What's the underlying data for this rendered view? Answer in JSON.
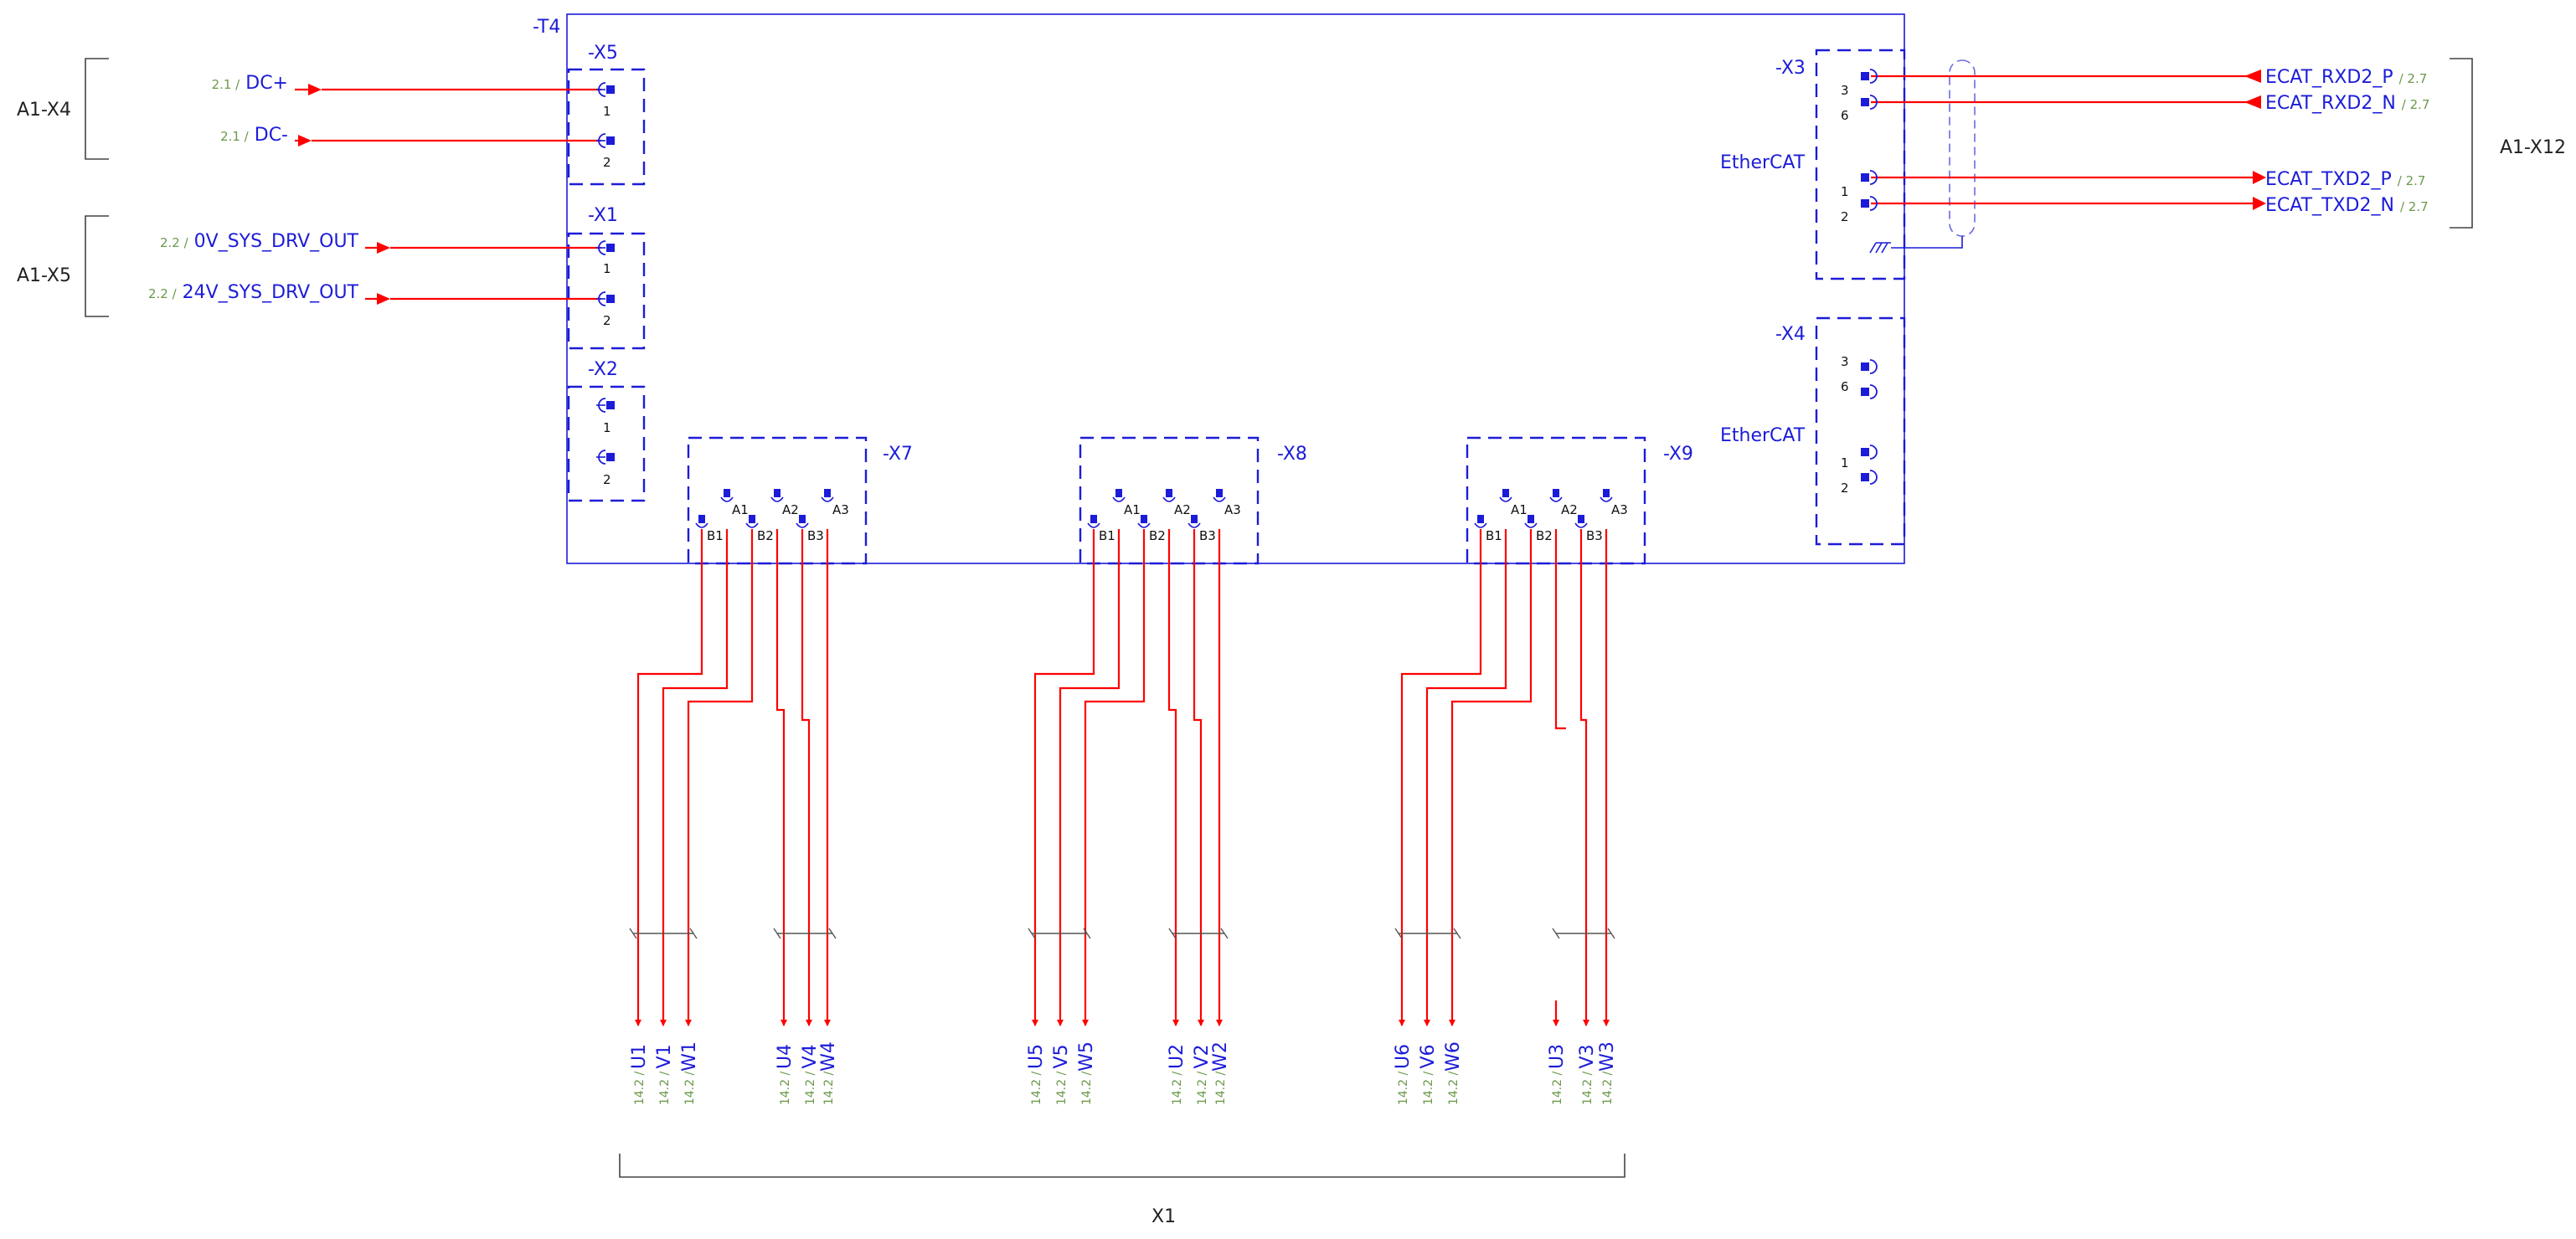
{
  "device": {
    "id": "-T4"
  },
  "colors": {
    "wire": "#ff0000",
    "device": "#1c1cd8",
    "crossref": "#6a9a4a",
    "bracket": "#444444"
  },
  "connectors": {
    "x5": {
      "label": "-X5",
      "pin1": "1",
      "pin2": "2"
    },
    "x1": {
      "label": "-X1",
      "pin1": "1",
      "pin2": "2"
    },
    "x2": {
      "label": "-X2",
      "pin1": "1",
      "pin2": "2"
    },
    "x3": {
      "label": "-X3",
      "proto": "EtherCAT",
      "pins": [
        "3",
        "6",
        "1",
        "2"
      ]
    },
    "x4": {
      "label": "-X4",
      "proto": "EtherCAT",
      "pins": [
        "3",
        "6",
        "1",
        "2"
      ]
    },
    "x7": {
      "label": "-X7",
      "pins": [
        "B1",
        "A1",
        "B2",
        "A2",
        "B3",
        "A3"
      ]
    },
    "x8": {
      "label": "-X8",
      "pins": [
        "B1",
        "A1",
        "B2",
        "A2",
        "B3",
        "A3"
      ]
    },
    "x9": {
      "label": "-X9",
      "pins": [
        "B1",
        "A1",
        "B2",
        "A2",
        "B3",
        "A3"
      ]
    }
  },
  "left_groups": {
    "g1": "A1-X4",
    "g2": "A1-X5"
  },
  "right_group": "A1-X12",
  "bottom_group": "X1",
  "left_signals": [
    {
      "ref": "2.1 /",
      "name": "DC+"
    },
    {
      "ref": "2.1 /",
      "name": "DC-"
    },
    {
      "ref": "2.2 /",
      "name": "0V_SYS_DRV_OUT"
    },
    {
      "ref": "2.2 /",
      "name": "24V_SYS_DRV_OUT"
    }
  ],
  "right_signals": [
    {
      "name": "ECAT_RXD2_P",
      "ref": "/ 2.7"
    },
    {
      "name": "ECAT_RXD2_N",
      "ref": "/ 2.7"
    },
    {
      "name": "ECAT_TXD2_P",
      "ref": "/ 2.7"
    },
    {
      "name": "ECAT_TXD2_N",
      "ref": "/ 2.7"
    }
  ],
  "outputs": [
    {
      "name": "U1",
      "ref": "14.2 /"
    },
    {
      "name": "V1",
      "ref": "14.2 /"
    },
    {
      "name": "W1",
      "ref": "14.2 /"
    },
    {
      "name": "U4",
      "ref": "14.2 /"
    },
    {
      "name": "V4",
      "ref": "14.2 /"
    },
    {
      "name": "W4",
      "ref": "14.2 /"
    },
    {
      "name": "U5",
      "ref": "14.2 /"
    },
    {
      "name": "V5",
      "ref": "14.2 /"
    },
    {
      "name": "W5",
      "ref": "14.2 /"
    },
    {
      "name": "U2",
      "ref": "14.2 /"
    },
    {
      "name": "V2",
      "ref": "14.2 /"
    },
    {
      "name": "W2",
      "ref": "14.2 /"
    },
    {
      "name": "U6",
      "ref": "14.2 /"
    },
    {
      "name": "V6",
      "ref": "14.2 /"
    },
    {
      "name": "W6",
      "ref": "14.2 /"
    },
    {
      "name": "U3",
      "ref": "14.2 /"
    },
    {
      "name": "V3",
      "ref": "14.2 /"
    },
    {
      "name": "W3",
      "ref": "14.2 /"
    }
  ]
}
